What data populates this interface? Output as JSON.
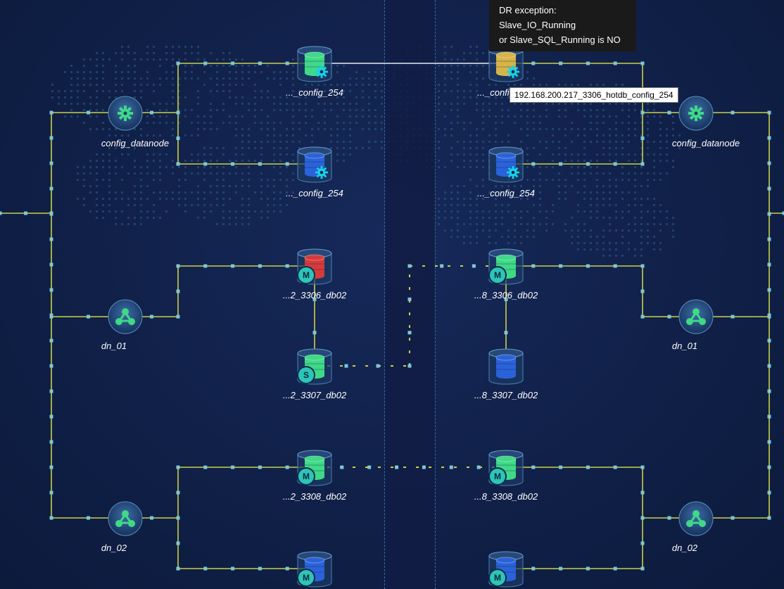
{
  "tooltip": {
    "line1": "DR exception: Slave_IO_Running",
    "line2": "or Slave_SQL_Running is NO"
  },
  "hover_tip": "192.168.200.217_3306_hotdb_config_254",
  "colors": {
    "link": "#c9d246",
    "dot": "#7fc6d6",
    "green_db": "#3fd987",
    "yellow_db": "#d6b44a",
    "blue_db": "#2a63d9",
    "red_db": "#d63b3b",
    "badge": "#2cc6b4",
    "hub": "#3fd987"
  },
  "left": {
    "config_group": {
      "label": "config_datanode",
      "icon": "gear-icon"
    },
    "dn_groups": [
      {
        "label": "dn_01",
        "icon": "share-icon"
      },
      {
        "label": "dn_02",
        "icon": "share-icon"
      }
    ],
    "dbs": [
      {
        "label": "..._config_254",
        "color": "green",
        "badge": "gear"
      },
      {
        "label": "..._config_254",
        "color": "blue",
        "badge": "gear"
      },
      {
        "label": "...2_3306_db02",
        "color": "red",
        "badge": "M"
      },
      {
        "label": "...2_3307_db02",
        "color": "green",
        "badge": "S"
      },
      {
        "label": "...2_3308_db02",
        "color": "green",
        "badge": "M"
      },
      {
        "label": "",
        "color": "blue",
        "badge": "M"
      }
    ]
  },
  "right": {
    "config_group": {
      "label": "config_datanode",
      "icon": "gear-icon"
    },
    "dn_groups": [
      {
        "label": "dn_01",
        "icon": "share-icon"
      },
      {
        "label": "dn_02",
        "icon": "share-icon"
      }
    ],
    "dbs": [
      {
        "label": "..._config_254",
        "color": "yellow",
        "badge": "gear"
      },
      {
        "label": "..._config_254",
        "color": "blue",
        "badge": "gear"
      },
      {
        "label": "...8_3306_db02",
        "color": "green",
        "badge": "M"
      },
      {
        "label": "...8_3307_db02",
        "color": "blue",
        "badge": ""
      },
      {
        "label": "...8_3308_db02",
        "color": "green",
        "badge": "M"
      },
      {
        "label": "",
        "color": "blue",
        "badge": "M"
      }
    ]
  }
}
